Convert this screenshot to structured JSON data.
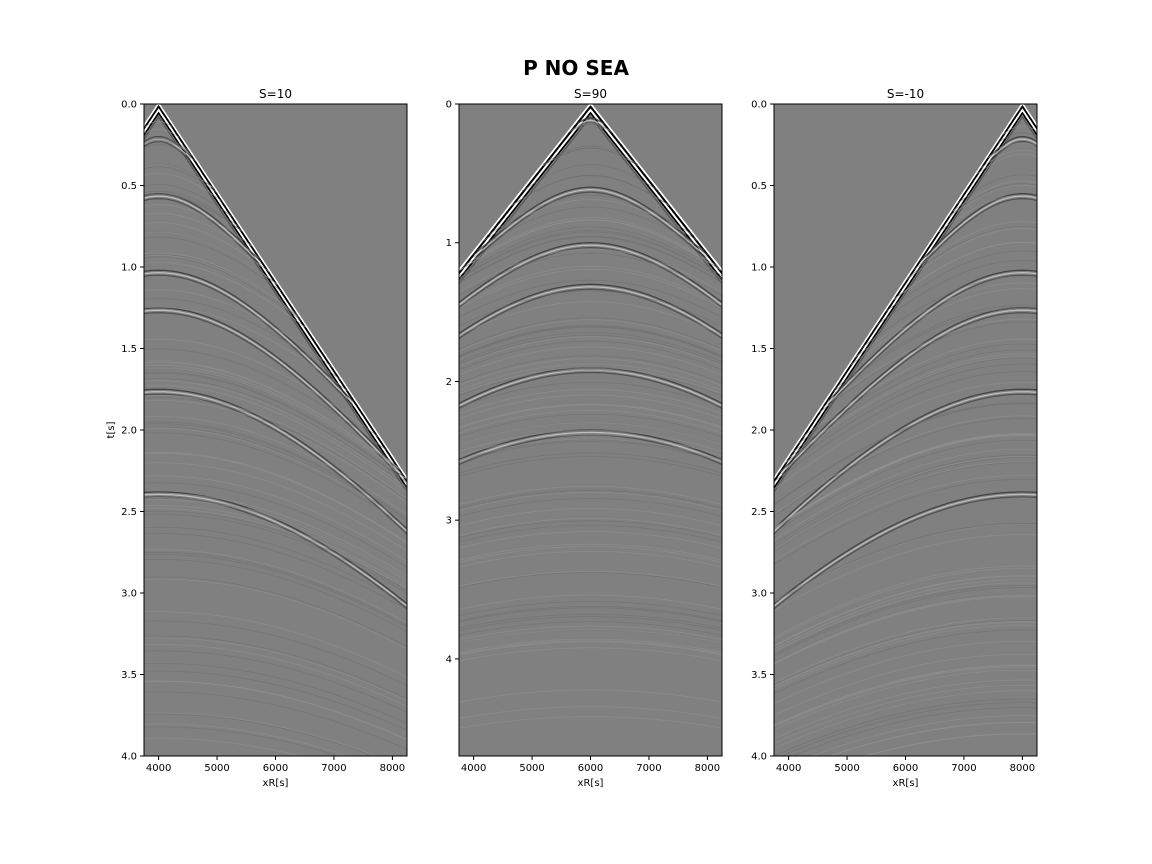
{
  "figure": {
    "suptitle": "P NO SEA",
    "colormap": "gray",
    "background_color": "#808080"
  },
  "chart_data": [
    {
      "type": "heatmap",
      "title": "S=10",
      "xlabel": "xR[s]",
      "ylabel": "t[s]",
      "xlim": [
        3750,
        8250
      ],
      "ylim": [
        4.0,
        0.0
      ],
      "xticks": [
        4000,
        5000,
        6000,
        7000,
        8000
      ],
      "xtick_labels": [
        "4000",
        "5000",
        "6000",
        "7000",
        "8000"
      ],
      "yticks": [
        0.0,
        0.5,
        1.0,
        1.5,
        2.0,
        2.5,
        3.0,
        3.5,
        4.0
      ],
      "ytick_labels": [
        "0.0",
        "0.5",
        "1.0",
        "1.5",
        "2.0",
        "2.5",
        "3.0",
        "3.5",
        "4.0"
      ],
      "source_x": 4000,
      "direct_wave": {
        "apex_x": 4000,
        "apex_t": 0.0,
        "t_at_8250": 2.3
      },
      "reflections": [
        {
          "apex_x": 4000,
          "apex_t": 0.2
        },
        {
          "apex_x": 4000,
          "apex_t": 0.55
        },
        {
          "apex_x": 4000,
          "apex_t": 1.02
        },
        {
          "apex_x": 4000,
          "apex_t": 1.25
        },
        {
          "apex_x": 4000,
          "apex_t": 1.75
        },
        {
          "apex_x": 4000,
          "apex_t": 2.38
        }
      ]
    },
    {
      "type": "heatmap",
      "title": "S=90",
      "xlabel": "xR[s]",
      "ylabel": "",
      "xlim": [
        3750,
        8250
      ],
      "ylim": [
        4.7,
        0.0
      ],
      "xticks": [
        4000,
        5000,
        6000,
        7000,
        8000
      ],
      "xtick_labels": [
        "4000",
        "5000",
        "6000",
        "7000",
        "8000"
      ],
      "yticks": [
        0,
        1,
        2,
        3,
        4
      ],
      "ytick_labels": [
        "0",
        "1",
        "2",
        "3",
        "4"
      ],
      "source_x": 6000,
      "direct_wave": {
        "apex_x": 6000,
        "apex_t": 0.0,
        "t_at_3750": 1.2
      },
      "reflections": [
        {
          "apex_x": 6000,
          "apex_t": 0.1
        },
        {
          "apex_x": 6000,
          "apex_t": 0.6
        },
        {
          "apex_x": 6000,
          "apex_t": 1.0
        },
        {
          "apex_x": 6000,
          "apex_t": 1.3
        },
        {
          "apex_x": 6000,
          "apex_t": 1.9
        },
        {
          "apex_x": 6000,
          "apex_t": 2.35
        }
      ]
    },
    {
      "type": "heatmap",
      "title": "S=-10",
      "xlabel": "xR[s]",
      "ylabel": "",
      "xlim": [
        3750,
        8250
      ],
      "ylim": [
        4.0,
        0.0
      ],
      "xticks": [
        4000,
        5000,
        6000,
        7000,
        8000
      ],
      "xtick_labels": [
        "4000",
        "5000",
        "6000",
        "7000",
        "8000"
      ],
      "yticks": [
        0.0,
        0.5,
        1.0,
        1.5,
        2.0,
        2.5,
        3.0,
        3.5,
        4.0
      ],
      "ytick_labels": [
        "0.0",
        "0.5",
        "1.0",
        "1.5",
        "2.0",
        "2.5",
        "3.0",
        "3.5",
        "4.0"
      ],
      "source_x": 8000,
      "direct_wave": {
        "apex_x": 8000,
        "apex_t": 0.0,
        "t_at_3750": 2.3
      },
      "reflections": [
        {
          "apex_x": 8000,
          "apex_t": 0.2
        },
        {
          "apex_x": 8000,
          "apex_t": 0.55
        },
        {
          "apex_x": 8000,
          "apex_t": 1.02
        },
        {
          "apex_x": 8000,
          "apex_t": 1.25
        },
        {
          "apex_x": 8000,
          "apex_t": 1.75
        },
        {
          "apex_x": 8000,
          "apex_t": 2.38
        }
      ]
    }
  ]
}
